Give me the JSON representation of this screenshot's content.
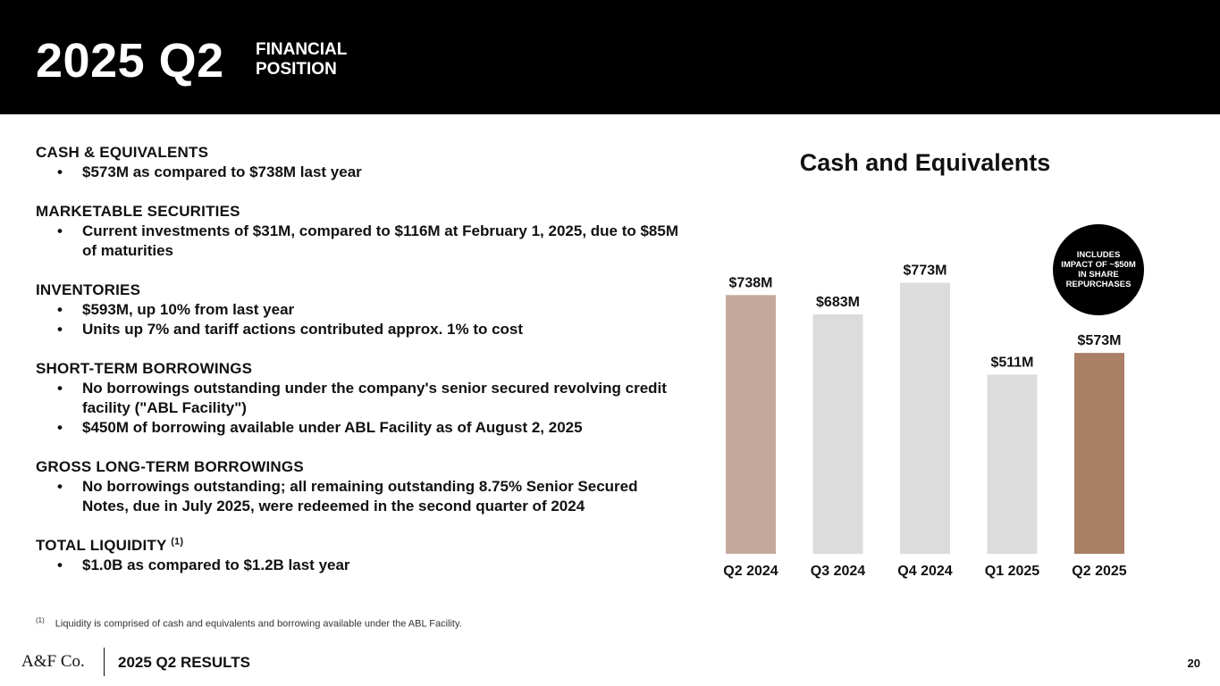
{
  "header": {
    "big": "2025 Q2",
    "small_line1": "FINANCIAL",
    "small_line2": "POSITION"
  },
  "sections": [
    {
      "title": "CASH & EQUIVALENTS",
      "bullets": [
        "$573M as compared to $738M last year"
      ]
    },
    {
      "title": "MARKETABLE SECURITIES",
      "bullets": [
        "Current investments of $31M, compared to $116M at February  1, 2025, due to $85M of maturities"
      ]
    },
    {
      "title": "INVENTORIES",
      "bullets": [
        "$593M, up 10% from last year",
        "Units up 7% and tariff actions contributed approx. 1% to cost"
      ]
    },
    {
      "title": "SHORT-TERM BORROWINGS",
      "bullets": [
        "No borrowings outstanding under the company's senior secured revolving credit facility (\"ABL Facility\")",
        "$450M of borrowing available under ABL Facility as of August 2, 2025"
      ]
    },
    {
      "title": "GROSS LONG-TERM BORROWINGS",
      "bullets": [
        "No borrowings outstanding; all remaining outstanding 8.75% Senior Secured Notes, due in July 2025, were redeemed in the second quarter of 2024"
      ]
    },
    {
      "title": "TOTAL LIQUIDITY",
      "sup": "(1)",
      "bullets": [
        "$1.0B as compared to $1.2B last year"
      ]
    }
  ],
  "bullet_glyph": "•",
  "footnote": {
    "marker": "(1)",
    "text": "Liquidity is comprised of cash and equivalents and borrowing available under the ABL Facility."
  },
  "chart_data": {
    "type": "bar",
    "title": "Cash and Equivalents",
    "categories": [
      "Q2 2024",
      "Q3 2024",
      "Q4 2024",
      "Q1 2025",
      "Q2 2025"
    ],
    "values": [
      738,
      683,
      773,
      511,
      573
    ],
    "labels": [
      "$738M",
      "$683M",
      "$773M",
      "$511M",
      "$573M"
    ],
    "unit": "$M",
    "ylim": [
      0,
      800
    ],
    "colors": [
      "#c4a99c",
      "#dcdcdc",
      "#dcdcdc",
      "#dcdcdc",
      "#a97f66"
    ],
    "grid": false,
    "legend": "none"
  },
  "badge": {
    "text": "INCLUDES IMPACT OF ~$50M IN SHARE REPURCHASES"
  },
  "footer": {
    "logo": "A&F Co.",
    "results": "2025 Q2 RESULTS",
    "page": "20"
  }
}
